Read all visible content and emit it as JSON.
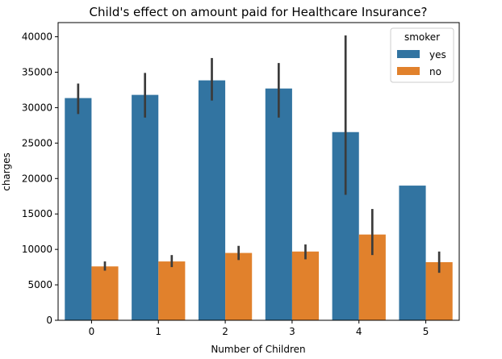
{
  "chart_data": {
    "type": "bar",
    "title": "Child's effect on amount paid for Healthcare Insurance?",
    "xlabel": "Number of Children",
    "ylabel": "charges",
    "categories": [
      "0",
      "1",
      "2",
      "3",
      "4",
      "5"
    ],
    "ylim": [
      0,
      42000
    ],
    "yticks": [
      0,
      5000,
      10000,
      15000,
      20000,
      25000,
      30000,
      35000,
      40000
    ],
    "grid": false,
    "legend": {
      "title": "smoker",
      "placement": "top-right"
    },
    "series": [
      {
        "name": "yes",
        "color": "#3274a1",
        "values": [
          31350,
          31800,
          33850,
          32700,
          26550,
          19000
        ],
        "ci_low": [
          29100,
          28600,
          31000,
          28600,
          17700,
          null
        ],
        "ci_high": [
          33400,
          34900,
          37000,
          36300,
          40200,
          null
        ]
      },
      {
        "name": "no",
        "color": "#e1812c",
        "values": [
          7600,
          8300,
          9500,
          9700,
          12100,
          8200
        ],
        "ci_low": [
          7000,
          7500,
          8500,
          8600,
          9200,
          6700
        ],
        "ci_high": [
          8300,
          9200,
          10500,
          10700,
          15700,
          9700
        ]
      }
    ],
    "errorbar_color": "#3b3b3b"
  }
}
